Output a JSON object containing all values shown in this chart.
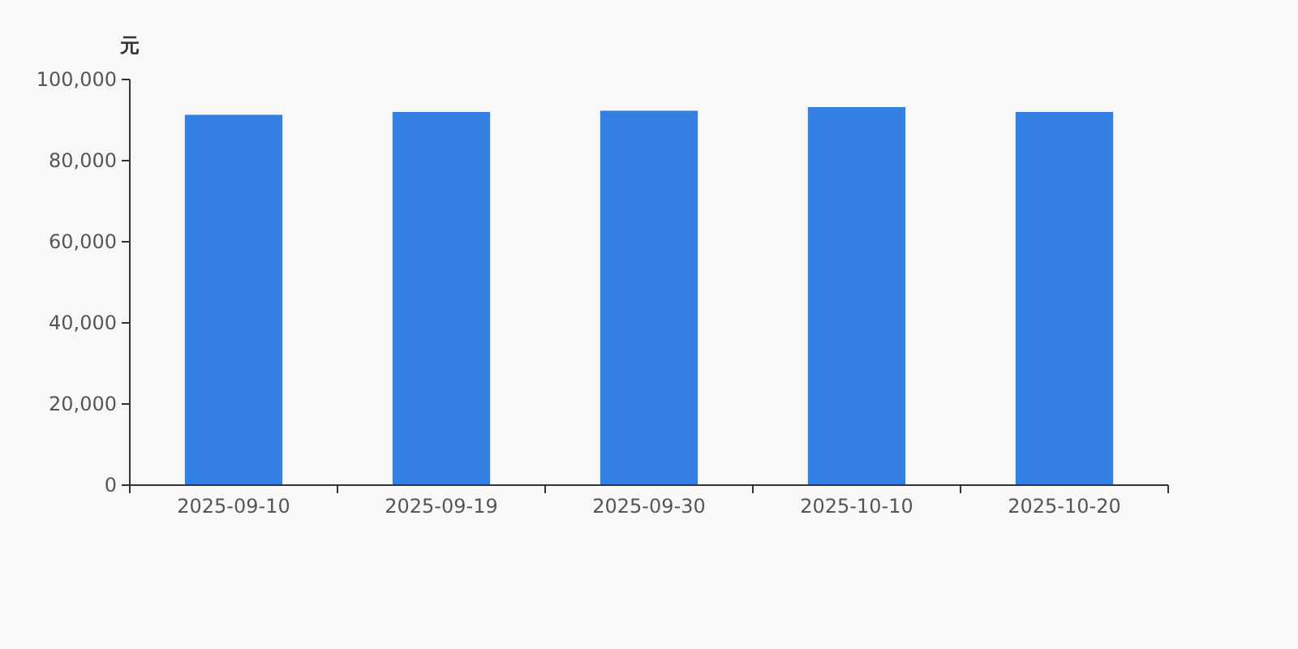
{
  "chart_data": {
    "type": "bar",
    "ylabel": "元",
    "categories": [
      "2025-09-10",
      "2025-09-19",
      "2025-09-30",
      "2025-10-10",
      "2025-10-20"
    ],
    "values": [
      91300,
      92000,
      92300,
      93200,
      92000
    ],
    "color": "#3380e2",
    "ylim": [
      0,
      100000
    ],
    "yticks": [
      {
        "value": 0,
        "label": "0"
      },
      {
        "value": 20000,
        "label": "20,000"
      },
      {
        "value": 40000,
        "label": "40,000"
      },
      {
        "value": 60000,
        "label": "60,000"
      },
      {
        "value": 80000,
        "label": "80,000"
      },
      {
        "value": 100000,
        "label": "100,000"
      }
    ],
    "grid": false
  }
}
